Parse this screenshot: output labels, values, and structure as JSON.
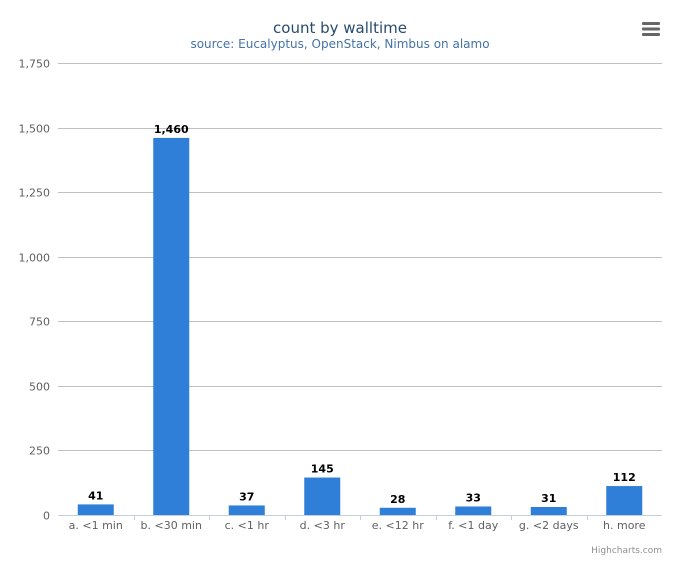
{
  "chart_data": {
    "type": "bar",
    "title": "count by walltime",
    "subtitle": "source: Eucalyptus, OpenStack, Nimbus on alamo",
    "categories": [
      "a. <1 min",
      "b. <30 min",
      "c. <1 hr",
      "d. <3 hr",
      "e. <12 hr",
      "f. <1 day",
      "g. <2 days",
      "h. more"
    ],
    "values": [
      41,
      1460,
      37,
      145,
      28,
      33,
      31,
      112
    ],
    "data_labels": [
      "41",
      "1,460",
      "37",
      "145",
      "28",
      "33",
      "31",
      "112"
    ],
    "ylim": [
      0,
      1750
    ],
    "yticks": [
      0,
      250,
      500,
      750,
      1000,
      1250,
      1500,
      1750
    ],
    "ytick_labels": [
      "0",
      "250",
      "500",
      "750",
      "1,000",
      "1,250",
      "1,500",
      "1,750"
    ],
    "grid": true,
    "legend": "none",
    "bar_color": "#2f7ed8"
  },
  "credit": "Highcharts.com",
  "menu": {
    "icon": "menu-icon"
  }
}
